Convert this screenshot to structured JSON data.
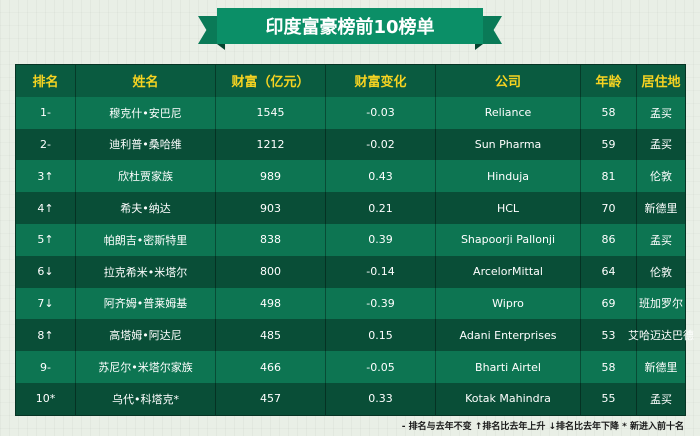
{
  "title": "印度富豪榜前10榜单",
  "headers": [
    "排名",
    "姓名",
    "财富（亿元）",
    "财富变化",
    "公司",
    "年龄",
    "居住地"
  ],
  "rows": [
    [
      "1-",
      "穆克什•安巴尼",
      "1545",
      "-0.03",
      "Reliance",
      "58",
      "孟买"
    ],
    [
      "2-",
      "迪利普•桑哈维",
      "1212",
      "-0.02",
      "Sun Pharma",
      "59",
      "孟买"
    ],
    [
      "3↑",
      "欣杜贾家族",
      "989",
      "0.43",
      "Hinduja",
      "81",
      "伦敦"
    ],
    [
      "4↑",
      "希夫•纳达",
      "903",
      "0.21",
      "HCL",
      "70",
      "新德里"
    ],
    [
      "5↑",
      "帕朗吉•密斯特里",
      "838",
      "0.39",
      "Shapoorji Pallonji",
      "86",
      "孟买"
    ],
    [
      "6↓",
      "拉克希米•米塔尔",
      "800",
      "-0.14",
      "ArcelorMittal",
      "64",
      "伦敦"
    ],
    [
      "7↓",
      "阿齐姆•普莱姆基",
      "498",
      "-0.39",
      "Wipro",
      "69",
      "班加罗尔"
    ],
    [
      "8↑",
      "高塔姆•阿达尼",
      "485",
      "0.15",
      "Adani Enterprises",
      "53",
      "艾哈迈达巴德"
    ],
    [
      "9-",
      "苏尼尔•米塔尔家族",
      "466",
      "-0.05",
      "Bharti Airtel",
      "58",
      "新德里"
    ],
    [
      "10*",
      "乌代•科塔克*",
      "457",
      "0.33",
      "Kotak Mahindra",
      "55",
      "孟买"
    ]
  ],
  "footer": "- 排名与去年不变 ↑排名比去年上升 ↓排名比去年下降 * 新进入前十名",
  "colors": {
    "header_text": "#f6d321",
    "row_light": "#0d7552",
    "row_dark": "#094e37",
    "ribbon": "#0b8f67"
  }
}
